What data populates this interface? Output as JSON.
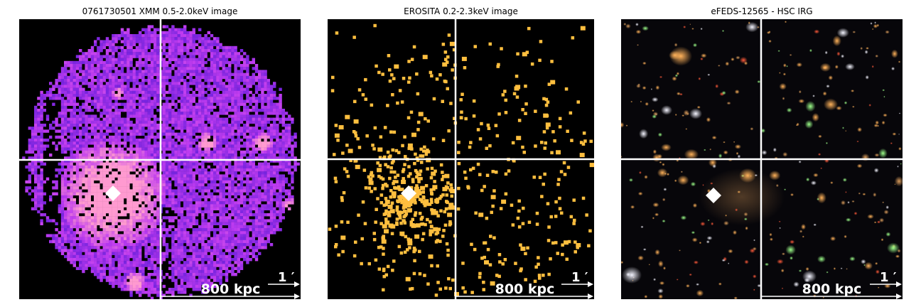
{
  "panels": [
    {
      "title": "0761730501 XMM 0.5-2.0keV image",
      "scale_angle": "1 ′",
      "scale_distance": "800 kpc"
    },
    {
      "title": "EROSITA 0.2-2.3keV image",
      "scale_angle": "1 ′",
      "scale_distance": "800 kpc"
    },
    {
      "title": "eFEDS-12565 - HSC IRG",
      "scale_angle": "1 ′",
      "scale_distance": "800 kpc"
    }
  ],
  "colors": {
    "xmm_low": "#3a0fd0",
    "xmm_mid": "#c03cf0",
    "xmm_high": "#ff9ad0",
    "erosita_pixel": "#ffbf3f",
    "crosshair": "#ffffff",
    "marker": "#ffffff"
  },
  "marker_shape": "white-diamond"
}
